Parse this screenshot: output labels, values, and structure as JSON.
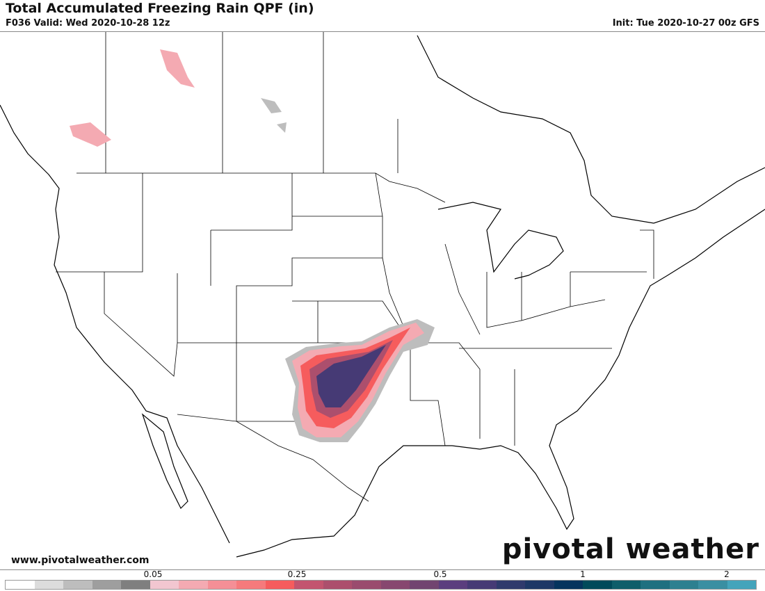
{
  "header": {
    "title": "Total Accumulated Freezing Rain QPF (in)",
    "valid": "F036 Valid: Wed 2020-10-28 12z",
    "init": "Init: Tue 2020-10-27 00z GFS"
  },
  "footer": {
    "website": "www.pivotalweather.com",
    "logo": "pivotal weather"
  },
  "colorbar": {
    "colors": [
      "#ffffff",
      "#dcdcdc",
      "#bdbdbd",
      "#9e9e9e",
      "#7f7f7f",
      "#f2c6d0",
      "#f4aab2",
      "#f58f96",
      "#f67a7c",
      "#f65c5d",
      "#c3546f",
      "#ac4f6d",
      "#9a4c6e",
      "#87476f",
      "#714470",
      "#5b3e7e",
      "#463a75",
      "#2f3a6c",
      "#1d3866",
      "#05345d",
      "#004a5a",
      "#0e5e6a",
      "#1f7080",
      "#2d8090",
      "#3a8fa2",
      "#44a4bb"
    ],
    "labels": [
      "0.05",
      "0.25",
      "0.5",
      "1",
      "2"
    ]
  },
  "map": {
    "region": "North America (CONUS)",
    "precip_colors": {
      "light": "#bdbdbd",
      "pink": "#f4aab2",
      "red": "#f65c5d",
      "mauve": "#ac4f6d",
      "purple": "#463a75"
    }
  }
}
